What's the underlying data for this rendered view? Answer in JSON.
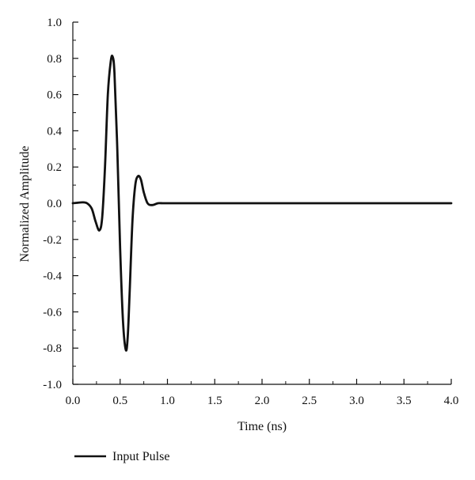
{
  "chart_data": {
    "type": "line",
    "title": "",
    "xlabel": "Time (ns)",
    "ylabel": "Normalized Amplitude",
    "xlim": [
      0.0,
      4.0
    ],
    "ylim": [
      -1.0,
      1.0
    ],
    "x_ticks": [
      "0.0",
      "0.5",
      "1.0",
      "1.5",
      "2.0",
      "2.5",
      "3.0",
      "3.5",
      "4.0"
    ],
    "y_ticks": [
      "-1.0",
      "-0.8",
      "-0.6",
      "-0.4",
      "-0.2",
      "0.0",
      "0.2",
      "0.4",
      "0.6",
      "0.8",
      "1.0"
    ],
    "grid": false,
    "legend_position": "bottom-left",
    "line_color": "#111111",
    "series": [
      {
        "name": "Input Pulse",
        "x": [
          0.0,
          0.1,
          0.15,
          0.2,
          0.24,
          0.28,
          0.31,
          0.34,
          0.37,
          0.4,
          0.42,
          0.44,
          0.47,
          0.5,
          0.53,
          0.56,
          0.58,
          0.6,
          0.63,
          0.66,
          0.69,
          0.72,
          0.75,
          0.79,
          0.84,
          0.9,
          0.95,
          1.0,
          1.5,
          2.0,
          2.5,
          3.0,
          3.5,
          4.0
        ],
        "y": [
          0.0,
          0.005,
          0.0,
          -0.03,
          -0.1,
          -0.15,
          -0.08,
          0.2,
          0.6,
          0.78,
          0.81,
          0.72,
          0.3,
          -0.25,
          -0.65,
          -0.81,
          -0.74,
          -0.5,
          -0.1,
          0.1,
          0.15,
          0.13,
          0.06,
          0.0,
          -0.01,
          0.0,
          0.0,
          0.0,
          0.0,
          0.0,
          0.0,
          0.0,
          0.0,
          0.0
        ]
      }
    ]
  }
}
